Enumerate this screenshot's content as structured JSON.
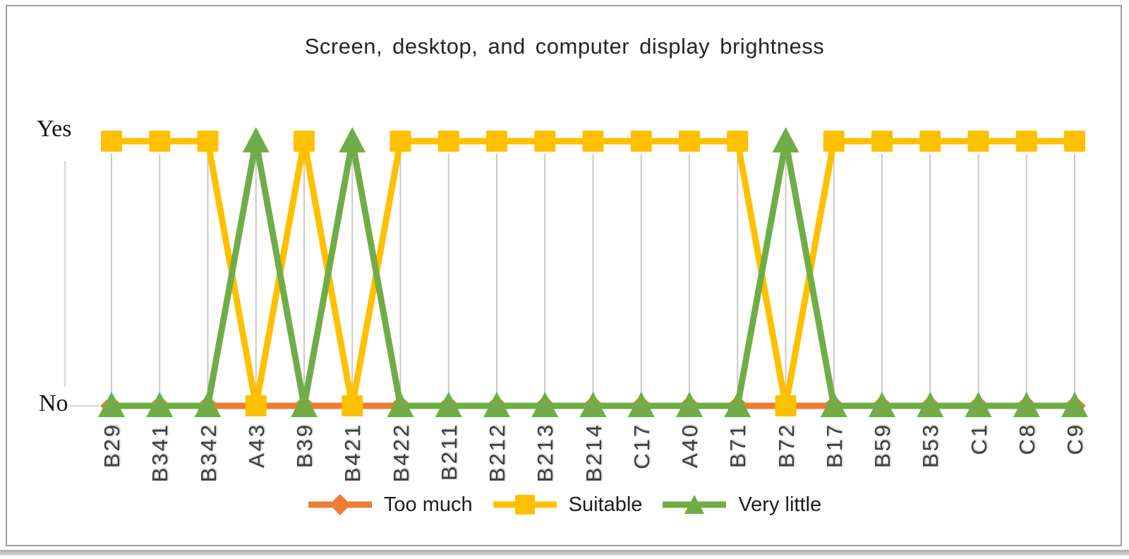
{
  "chart_data": {
    "type": "line",
    "title": "Screen, desktop, and computer display brightness",
    "y_tick_labels": [
      "Yes",
      "No"
    ],
    "y_axis": {
      "values_are_categorical": true,
      "top": "Yes",
      "bottom": "No"
    },
    "categories": [
      "B29",
      "B341",
      "B342",
      "A43",
      "B39",
      "B421",
      "B422",
      "B211",
      "B212",
      "B213",
      "B214",
      "C17",
      "A40",
      "B71",
      "B72",
      "B17",
      "B59",
      "B53",
      "C1",
      "C8",
      "C9"
    ],
    "series": [
      {
        "name": "Too much",
        "color": "#ED7D31",
        "marker": "diamond",
        "values": [
          "No",
          "No",
          "No",
          "No",
          "No",
          "No",
          "No",
          "No",
          "No",
          "No",
          "No",
          "No",
          "No",
          "No",
          "No",
          "No",
          "No",
          "No",
          "No",
          "No",
          "No"
        ]
      },
      {
        "name": "Suitable",
        "color": "#FFC000",
        "marker": "square",
        "values": [
          "Yes",
          "Yes",
          "Yes",
          "No",
          "Yes",
          "No",
          "Yes",
          "Yes",
          "Yes",
          "Yes",
          "Yes",
          "Yes",
          "Yes",
          "Yes",
          "No",
          "Yes",
          "Yes",
          "Yes",
          "Yes",
          "Yes",
          "Yes"
        ]
      },
      {
        "name": "Very little",
        "color": "#70AD47",
        "marker": "triangle",
        "values": [
          "No",
          "No",
          "No",
          "Yes",
          "No",
          "Yes",
          "No",
          "No",
          "No",
          "No",
          "No",
          "No",
          "No",
          "No",
          "Yes",
          "No",
          "No",
          "No",
          "No",
          "No",
          "No"
        ]
      }
    ],
    "legend_position": "bottom",
    "grid": "vertical-drop-lines",
    "drop_line_color": "#c9c9c9",
    "axis_line_color": "#d9d9d9"
  }
}
